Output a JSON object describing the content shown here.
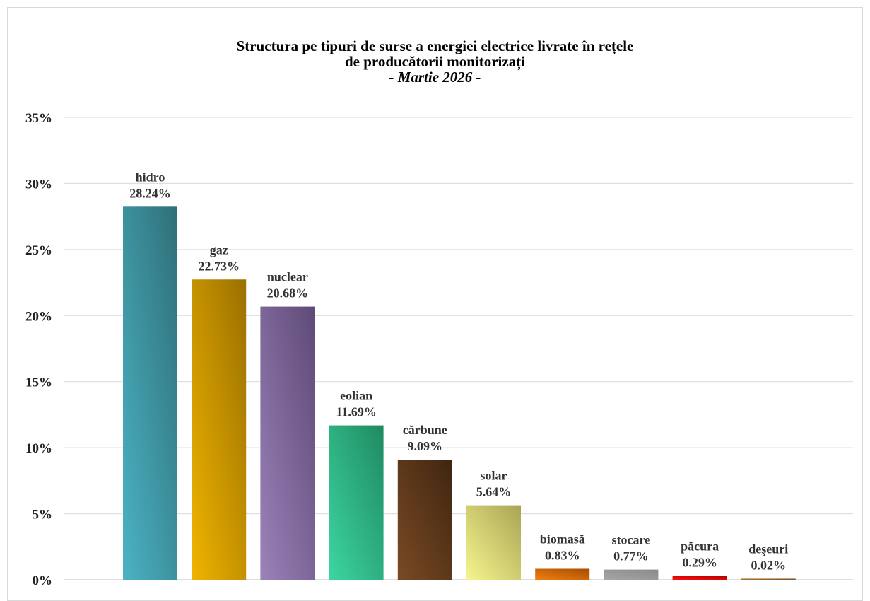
{
  "chart_data": {
    "type": "bar",
    "title": {
      "line1": "Structura pe tipuri de surse a energiei electrice livrate în rețele",
      "line2": "de producătorii monitorizați",
      "line3": "- Martie 2026 -"
    },
    "xlabel": "",
    "ylabel": "",
    "ylim": [
      0,
      0.35
    ],
    "yticks": [
      "0%",
      "5%",
      "10%",
      "15%",
      "20%",
      "25%",
      "30%",
      "35%"
    ],
    "grid": true,
    "legend": "none",
    "categories": [
      "hidro",
      "gaz",
      "nuclear",
      "eolian",
      "cărbune",
      "solar",
      "biomasă",
      "stocare",
      "păcura",
      "deşeuri"
    ],
    "values": [
      0.2824,
      0.2273,
      0.2068,
      0.1169,
      0.0909,
      0.0564,
      0.0083,
      0.0077,
      0.0029,
      0.0002
    ],
    "value_labels": [
      "28.24%",
      "22.73%",
      "20.68%",
      "11.69%",
      "9.09%",
      "5.64%",
      "0.83%",
      "0.77%",
      "0.29%",
      "0.02%"
    ],
    "colors": [
      [
        "#4bb3c4",
        "#2f6f78"
      ],
      [
        "#f0b400",
        "#9a7000"
      ],
      [
        "#9b82b8",
        "#5e4a78"
      ],
      [
        "#3dd6a0",
        "#1f8a62"
      ],
      [
        "#7a4a24",
        "#3f2610"
      ],
      [
        "#f7f58e",
        "#a8a455"
      ],
      [
        "#f08010",
        "#a84c00"
      ],
      [
        "#a6a6a6",
        "#8a8a8a"
      ],
      [
        "#ff1010",
        "#b00000"
      ],
      [
        "#b57a30",
        "#6a4412"
      ]
    ]
  }
}
